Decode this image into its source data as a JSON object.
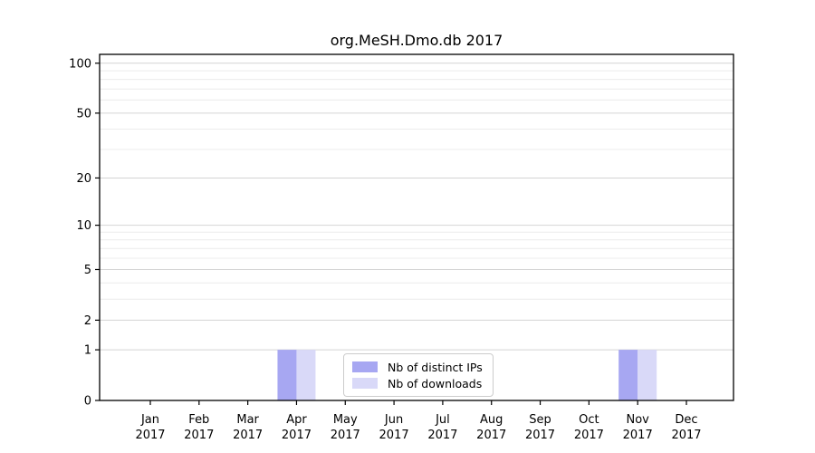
{
  "chart_data": {
    "type": "bar",
    "title": "org.MeSH.Dmo.db 2017",
    "categories": [
      "Jan",
      "Feb",
      "Mar",
      "Apr",
      "May",
      "Jun",
      "Jul",
      "Aug",
      "Sep",
      "Oct",
      "Nov",
      "Dec"
    ],
    "category_year": "2017",
    "series": [
      {
        "name": "Nb of distinct IPs",
        "color": "#a7a7f2",
        "values": [
          0,
          0,
          0,
          1,
          0,
          0,
          0,
          0,
          0,
          0,
          1,
          0
        ]
      },
      {
        "name": "Nb of downloads",
        "color": "#d9d9f8",
        "values": [
          0,
          0,
          0,
          1,
          0,
          0,
          0,
          0,
          0,
          0,
          1,
          0
        ]
      }
    ],
    "y_axis": {
      "scale": "log1p",
      "ticks": [
        100,
        50,
        20,
        10,
        5,
        2,
        1,
        0
      ],
      "minor_gridlines": [
        90,
        80,
        70,
        60,
        40,
        30,
        9,
        8,
        7,
        6,
        4,
        3
      ],
      "ylim": [
        0,
        113
      ]
    },
    "x_axis": {
      "tick_label_line2": "2017"
    },
    "legend": {
      "position": "lower center"
    },
    "grid": true
  },
  "colors": {
    "background": "#ffffff",
    "axis": "#000000",
    "major_grid": "#d4d4d4",
    "minor_grid": "#ececec",
    "tick_text": "#000000"
  }
}
